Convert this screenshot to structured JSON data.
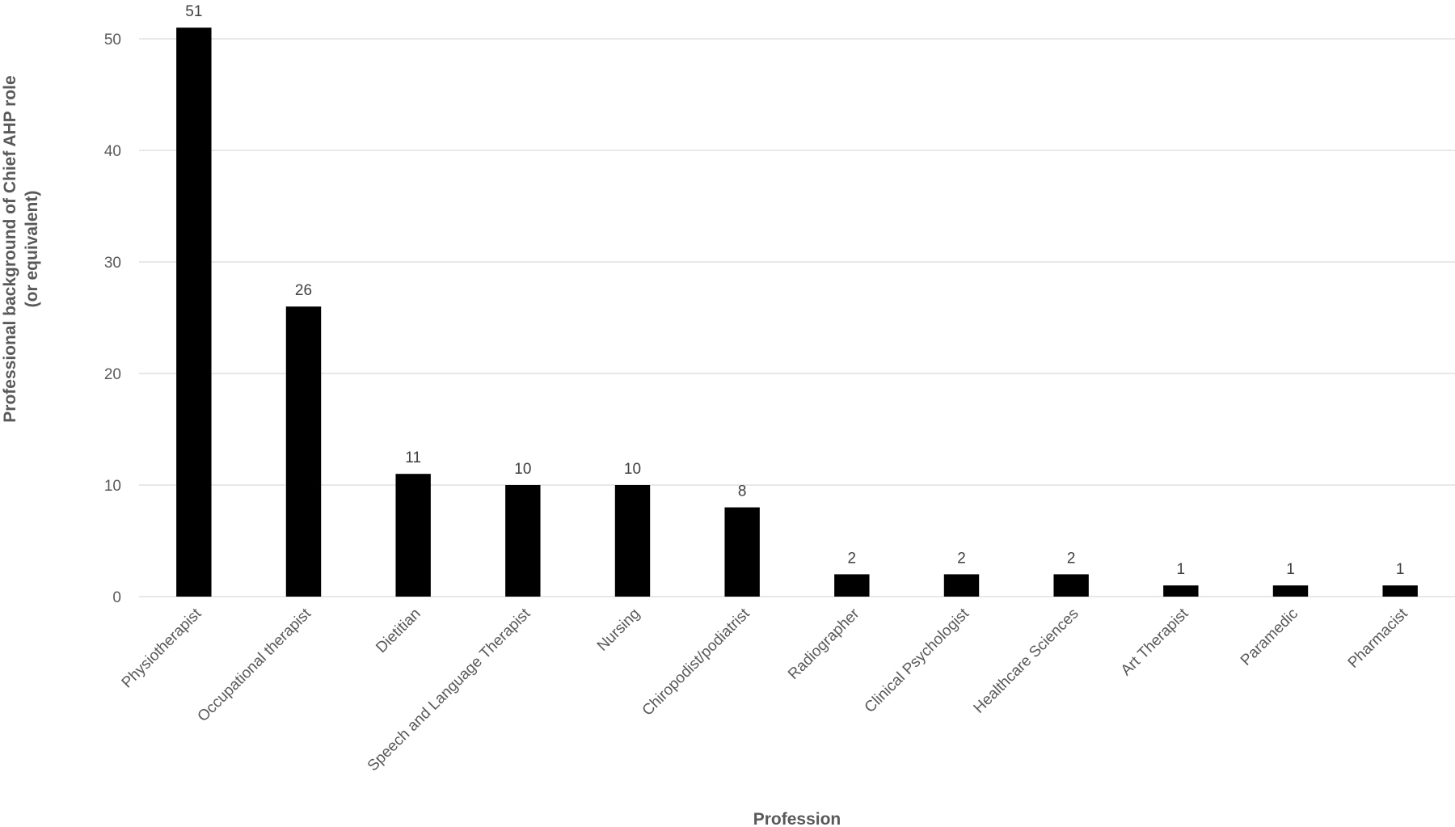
{
  "chart_data": {
    "type": "bar",
    "title": "",
    "xlabel": "Profession",
    "ylabel_line1": "Professional background of Chief AHP role",
    "ylabel_line2": "(or equivalent)",
    "categories": [
      "Physiotherapist",
      "Occupational therapist",
      "Dietitian",
      "Speech and Language Therapist",
      "Nursing",
      "Chiropodist/podiatrist",
      "Radiographer",
      "Clinical Psychologist",
      "Healthcare Sciences",
      "Art Therapist",
      "Paramedic",
      "Pharmacist"
    ],
    "values": [
      51,
      26,
      11,
      10,
      10,
      8,
      2,
      2,
      2,
      1,
      1,
      1
    ],
    "ylim": [
      0,
      50
    ],
    "yticks": [
      0,
      10,
      20,
      30,
      40,
      50
    ],
    "grid": true,
    "legend": "none",
    "bar_color": "#000000",
    "grid_color": "#d9d9d9"
  }
}
